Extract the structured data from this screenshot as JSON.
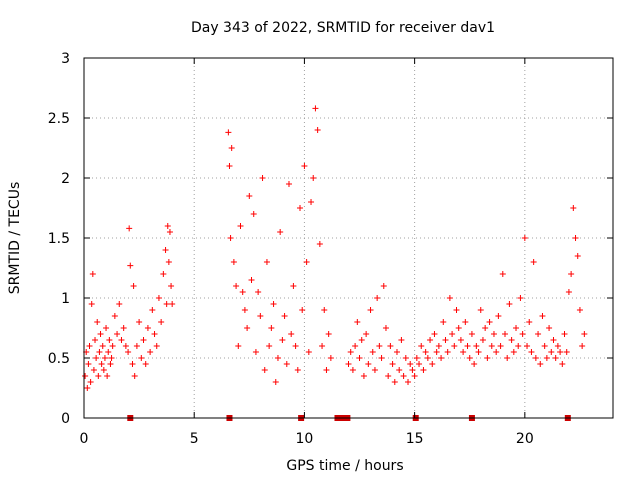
{
  "chart_data": {
    "type": "scatter",
    "title": "Day 343 of 2022, SRMTID for receiver dav1",
    "xlabel": "GPS time / hours",
    "ylabel": "SRMTID / TECUs",
    "xlim": [
      0,
      24
    ],
    "ylim": [
      0,
      3
    ],
    "xticks": [
      0,
      5,
      10,
      15,
      20
    ],
    "yticks": [
      0,
      0.5,
      1,
      1.5,
      2,
      2.5,
      3
    ],
    "grid": true,
    "marker": "plus",
    "color": "#ff0000",
    "series": [
      {
        "name": "SRMTID",
        "x": [
          0.05,
          0.1,
          0.15,
          0.2,
          0.25,
          0.3,
          0.35,
          0.4,
          0.45,
          0.5,
          0.55,
          0.6,
          0.65,
          0.7,
          0.75,
          0.8,
          0.85,
          0.9,
          0.95,
          1.0,
          1.05,
          1.1,
          1.15,
          1.2,
          1.25,
          1.3,
          1.4,
          1.5,
          1.6,
          1.7,
          1.8,
          1.9,
          2.0,
          2.05,
          2.1,
          2.2,
          2.25,
          2.3,
          2.4,
          2.5,
          2.6,
          2.7,
          2.8,
          2.9,
          3.0,
          3.1,
          3.2,
          3.3,
          3.4,
          3.5,
          3.6,
          3.7,
          3.75,
          3.8,
          3.85,
          3.9,
          3.95,
          4.0,
          6.55,
          6.6,
          6.65,
          6.7,
          6.8,
          6.9,
          7.0,
          7.1,
          7.2,
          7.3,
          7.4,
          7.5,
          7.6,
          7.7,
          7.8,
          7.9,
          8.0,
          8.1,
          8.2,
          8.3,
          8.4,
          8.5,
          8.6,
          8.7,
          8.8,
          8.9,
          9.0,
          9.1,
          9.2,
          9.3,
          9.4,
          9.5,
          9.6,
          9.7,
          9.8,
          9.9,
          10.0,
          10.1,
          10.2,
          10.3,
          10.4,
          10.5,
          10.6,
          10.7,
          10.8,
          10.9,
          11.0,
          11.1,
          11.2,
          12.0,
          12.1,
          12.2,
          12.3,
          12.4,
          12.5,
          12.6,
          12.7,
          12.8,
          12.9,
          13.0,
          13.1,
          13.2,
          13.3,
          13.4,
          13.5,
          13.6,
          13.7,
          13.8,
          13.9,
          14.0,
          14.1,
          14.2,
          14.3,
          14.4,
          14.5,
          14.6,
          14.7,
          14.8,
          14.9,
          15.0,
          15.1,
          15.2,
          15.3,
          15.4,
          15.5,
          15.6,
          15.7,
          15.8,
          15.9,
          16.0,
          16.1,
          16.2,
          16.3,
          16.4,
          16.5,
          16.6,
          16.7,
          16.8,
          16.9,
          17.0,
          17.1,
          17.2,
          17.3,
          17.4,
          17.5,
          17.6,
          17.7,
          17.8,
          17.9,
          18.0,
          18.1,
          18.2,
          18.3,
          18.4,
          18.5,
          18.6,
          18.7,
          18.8,
          18.9,
          19.0,
          19.1,
          19.2,
          19.3,
          19.4,
          19.5,
          19.6,
          19.7,
          19.8,
          19.9,
          20.0,
          20.1,
          20.2,
          20.3,
          20.4,
          20.5,
          20.6,
          20.7,
          20.8,
          20.9,
          21.0,
          21.1,
          21.2,
          21.3,
          21.4,
          21.5,
          21.6,
          21.7,
          21.8,
          21.9,
          22.0,
          22.1,
          22.2,
          22.3,
          22.4,
          22.5,
          22.6,
          22.7
        ],
        "y": [
          0.35,
          0.55,
          0.25,
          0.45,
          0.6,
          0.3,
          0.95,
          1.2,
          0.4,
          0.65,
          0.5,
          0.8,
          0.35,
          0.55,
          0.7,
          0.45,
          0.6,
          0.4,
          0.5,
          0.75,
          0.35,
          0.55,
          0.65,
          0.45,
          0.5,
          0.6,
          0.85,
          0.7,
          0.95,
          0.65,
          0.75,
          0.6,
          0.55,
          1.58,
          1.27,
          0.45,
          1.1,
          0.35,
          0.6,
          0.8,
          0.5,
          0.65,
          0.45,
          0.75,
          0.55,
          0.9,
          0.7,
          0.6,
          1.0,
          0.8,
          1.2,
          1.4,
          0.95,
          1.6,
          1.3,
          1.55,
          1.1,
          0.95,
          2.38,
          2.1,
          1.5,
          2.25,
          1.3,
          1.1,
          0.6,
          1.6,
          1.05,
          0.9,
          0.75,
          1.85,
          1.15,
          1.7,
          0.55,
          1.05,
          0.85,
          2.0,
          0.4,
          1.3,
          0.6,
          0.75,
          0.95,
          0.3,
          0.5,
          1.55,
          0.65,
          0.85,
          0.45,
          1.95,
          0.7,
          1.1,
          0.6,
          0.4,
          1.75,
          0.9,
          2.1,
          1.3,
          0.55,
          1.8,
          2.0,
          2.58,
          2.4,
          1.45,
          0.6,
          0.9,
          0.4,
          0.7,
          0.5,
          0.45,
          0.55,
          0.4,
          0.6,
          0.8,
          0.5,
          0.65,
          0.35,
          0.7,
          0.45,
          0.9,
          0.55,
          0.4,
          1.0,
          0.6,
          0.5,
          1.1,
          0.75,
          0.35,
          0.6,
          0.45,
          0.3,
          0.55,
          0.4,
          0.65,
          0.35,
          0.5,
          0.3,
          0.45,
          0.4,
          0.35,
          0.5,
          0.45,
          0.6,
          0.4,
          0.55,
          0.5,
          0.65,
          0.45,
          0.7,
          0.55,
          0.6,
          0.5,
          0.8,
          0.65,
          0.55,
          1.0,
          0.7,
          0.6,
          0.9,
          0.75,
          0.65,
          0.55,
          0.8,
          0.6,
          0.5,
          0.7,
          0.45,
          0.6,
          0.55,
          0.9,
          0.65,
          0.75,
          0.5,
          0.8,
          0.6,
          0.7,
          0.55,
          0.85,
          0.6,
          1.2,
          0.7,
          0.5,
          0.95,
          0.65,
          0.55,
          0.75,
          0.6,
          1.0,
          0.7,
          1.5,
          0.6,
          0.8,
          0.55,
          1.3,
          0.5,
          0.7,
          0.45,
          0.85,
          0.6,
          0.5,
          0.75,
          0.55,
          0.65,
          0.5,
          0.6,
          0.55,
          0.45,
          0.7,
          0.55,
          1.05,
          1.2,
          1.75,
          1.5,
          1.35,
          0.9,
          0.6,
          0.7
        ]
      }
    ],
    "flags": [
      2.1,
      6.6,
      9.85,
      11.5,
      11.65,
      11.8,
      11.95,
      15.05,
      17.6,
      21.95
    ]
  }
}
